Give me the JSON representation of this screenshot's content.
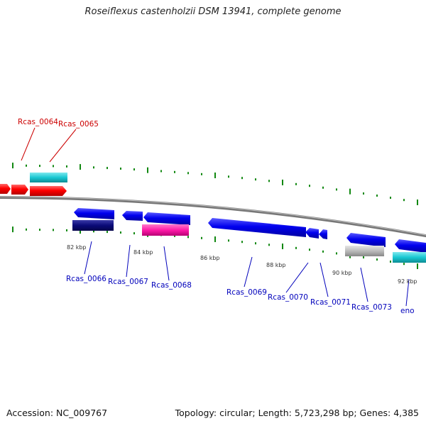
{
  "title": "Roseiflexus castenholzii DSM 13941, complete genome",
  "footer": {
    "accession": "Accession: NC_009767",
    "summary": "Topology: circular; Length: 5,723,298 bp; Genes: 4,385"
  },
  "kbp_labels": [
    "82 kbp",
    "84 kbp",
    "86 kbp",
    "88 kbp",
    "90 kbp",
    "92 kbp"
  ],
  "gene_labels": {
    "top": [
      "Rcas_0064",
      "Rcas_0065"
    ],
    "bottom": [
      "Rcas_0066",
      "Rcas_0067",
      "Rcas_0068",
      "Rcas_0069",
      "Rcas_0070",
      "Rcas_0071",
      "Rcas_0073",
      "eno"
    ]
  },
  "colors": {
    "forward_gene": "#ff0000",
    "reverse_gene": "#0000ee",
    "cyan_feature": "#19c8d2",
    "navy_feature": "#0a0a78",
    "magenta_feature": "#ff1aa8",
    "grey_feature": "#bbbbbb",
    "backbone": "#777777",
    "tick": "#118811",
    "top_label": "#cc0000",
    "bottom_label": "#0000bb"
  }
}
